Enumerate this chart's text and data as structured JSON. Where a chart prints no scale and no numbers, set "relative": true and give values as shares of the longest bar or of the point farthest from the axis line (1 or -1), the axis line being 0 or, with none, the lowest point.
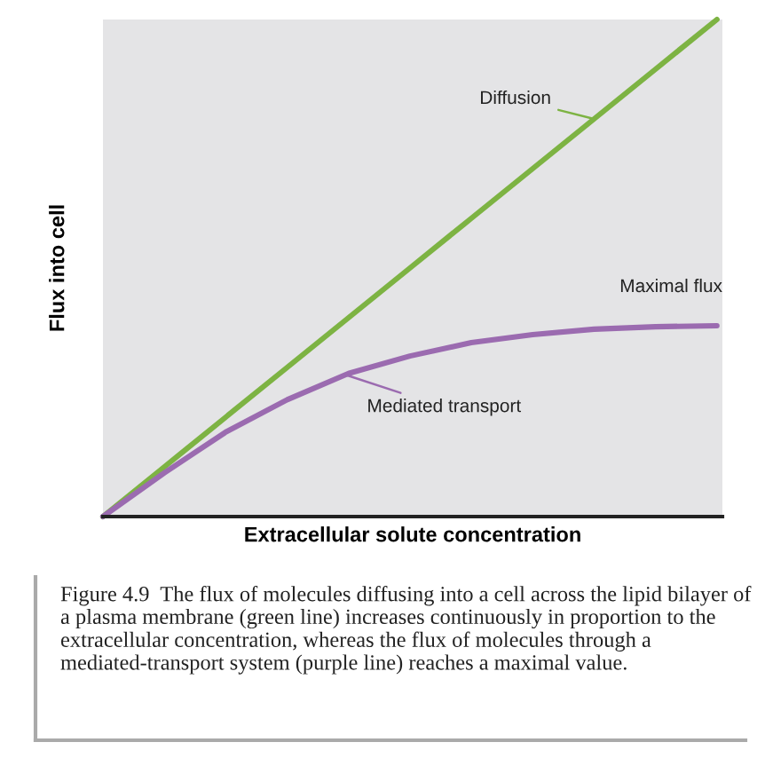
{
  "chart_data": {
    "type": "line",
    "relative": true,
    "xlabel": "Extracellular solute concentration",
    "ylabel": "Flux into cell",
    "categories": [
      null,
      null,
      null,
      null,
      null,
      null,
      null,
      null,
      null,
      null,
      null
    ],
    "series": [
      {
        "name": "Diffusion",
        "color": "#7db343",
        "values": [
          0,
          0.1,
          0.2,
          0.3,
          0.4,
          0.5,
          0.6,
          0.7,
          0.8,
          0.9,
          1
        ]
      },
      {
        "name": "Mediated transport",
        "color": "#9b6bb0",
        "values": [
          0,
          0.088,
          0.17,
          0.235,
          0.288,
          0.323,
          0.35,
          0.366,
          0.377,
          0.382,
          0.384
        ]
      }
    ],
    "annotations": [
      "Maximal flux",
      "Figure 4.9  The flux of molecules diffusing into a cell across the lipid bilayer of a plasma membrane (green line) increases continuously in proportion to the extracellular concentration, whereas the flux of molecules through a mediated-transport system (purple line) reaches a maximal value."
    ]
  }
}
